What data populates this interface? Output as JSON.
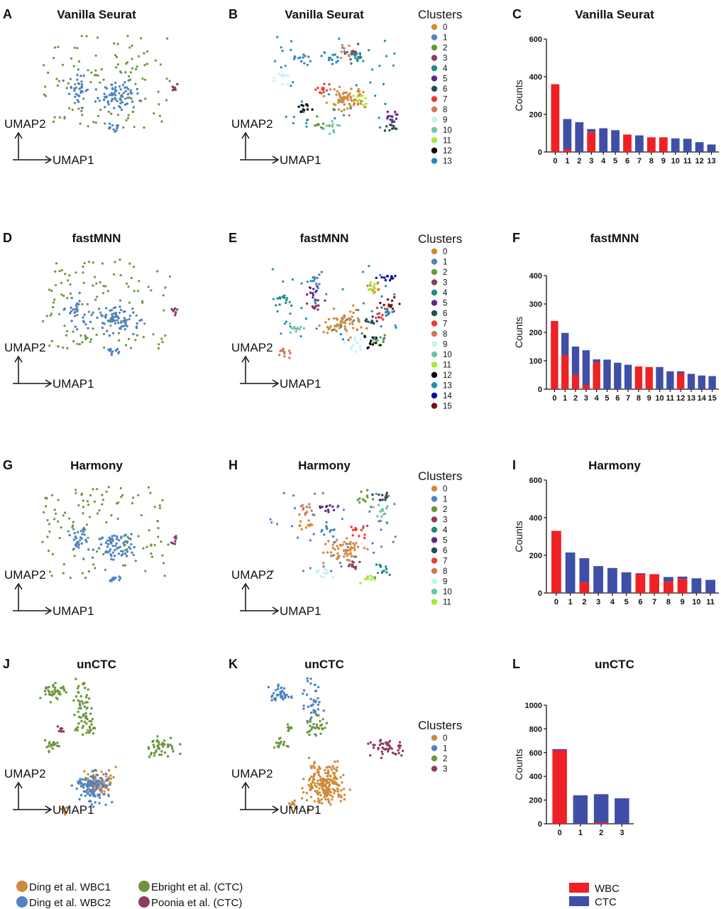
{
  "colors": {
    "wbc": "#ee2124",
    "ctc": "#3f4fa8",
    "ding_wbc1": "#d08a3b",
    "ding_wbc2": "#4f83c4",
    "ebright": "#6b963c",
    "poonia": "#8c3d62",
    "clusters": [
      "#d08a3b",
      "#4f83c4",
      "#6b963c",
      "#8c3d62",
      "#1f8a8a",
      "#5e2a8a",
      "#2c4a52",
      "#ee3a2e",
      "#c97a5e",
      "#c5f2f5",
      "#6cc6a8",
      "#a8e83a",
      "#0a0a0a",
      "#1b8fb8",
      "#0a0a9e",
      "#7d0f0f"
    ]
  },
  "umap_axes": {
    "x": "UMAP1",
    "y": "UMAP2"
  },
  "clusters_legend_title": "Clusters",
  "rows": [
    {
      "title": "Vanilla Seurat",
      "letters": [
        "A",
        "B",
        "C"
      ],
      "n_clusters": 14
    },
    {
      "title": "fastMNN",
      "letters": [
        "D",
        "E",
        "F"
      ],
      "n_clusters": 16
    },
    {
      "title": "Harmony",
      "letters": [
        "G",
        "H",
        "I"
      ],
      "n_clusters": 12
    },
    {
      "title": "unCTC",
      "letters": [
        "J",
        "K",
        "L"
      ],
      "n_clusters": 4
    }
  ],
  "dataset_legend": [
    {
      "label": "Ding et al. WBC1",
      "color_key": "ding_wbc1"
    },
    {
      "label": "Ding et al. WBC2",
      "color_key": "ding_wbc2"
    },
    {
      "label": "Ebright et al. (CTC)",
      "color_key": "ebright"
    },
    {
      "label": "Poonia et al. (CTC)",
      "color_key": "poonia"
    }
  ],
  "type_legend": [
    {
      "label": "WBC",
      "color_key": "wbc"
    },
    {
      "label": "CTC",
      "color_key": "ctc"
    }
  ],
  "chart_data": [
    {
      "type": "bar",
      "stacked": true,
      "title": "Vanilla Seurat",
      "ylabel": "Counts",
      "xlabel": "",
      "ylim": [
        0,
        600
      ],
      "yticks": [
        0,
        200,
        400,
        600
      ],
      "categories": [
        "0",
        "1",
        "2",
        "3",
        "4",
        "5",
        "6",
        "7",
        "8",
        "9",
        "10",
        "11",
        "12",
        "13"
      ],
      "series": [
        {
          "name": "WBC",
          "values": [
            360,
            15,
            0,
            105,
            0,
            0,
            93,
            0,
            78,
            78,
            0,
            0,
            0,
            0
          ]
        },
        {
          "name": "CTC",
          "values": [
            0,
            160,
            158,
            17,
            126,
            116,
            0,
            88,
            0,
            0,
            72,
            70,
            52,
            40
          ]
        }
      ]
    },
    {
      "type": "bar",
      "stacked": true,
      "title": "fastMNN",
      "ylabel": "Counts",
      "xlabel": "",
      "ylim": [
        0,
        400
      ],
      "yticks": [
        0,
        100,
        200,
        300,
        400
      ],
      "categories": [
        "0",
        "1",
        "2",
        "3",
        "4",
        "5",
        "6",
        "7",
        "8",
        "9",
        "10",
        "11",
        "12",
        "13",
        "14",
        "15"
      ],
      "series": [
        {
          "name": "WBC",
          "values": [
            240,
            120,
            50,
            15,
            95,
            0,
            0,
            0,
            80,
            78,
            0,
            0,
            55,
            0,
            0,
            0
          ]
        },
        {
          "name": "CTC",
          "values": [
            0,
            78,
            100,
            122,
            10,
            104,
            93,
            86,
            0,
            0,
            78,
            63,
            8,
            54,
            48,
            46
          ]
        }
      ]
    },
    {
      "type": "bar",
      "stacked": true,
      "title": "Harmony",
      "ylabel": "Counts",
      "xlabel": "",
      "ylim": [
        0,
        600
      ],
      "yticks": [
        0,
        200,
        400,
        600
      ],
      "categories": [
        "0",
        "1",
        "2",
        "3",
        "4",
        "5",
        "6",
        "7",
        "8",
        "9",
        "10",
        "11"
      ],
      "series": [
        {
          "name": "WBC",
          "values": [
            330,
            0,
            55,
            0,
            0,
            0,
            100,
            100,
            60,
            75,
            0,
            0
          ]
        },
        {
          "name": "CTC",
          "values": [
            0,
            215,
            130,
            143,
            133,
            110,
            5,
            0,
            25,
            12,
            78,
            70
          ]
        }
      ]
    },
    {
      "type": "bar",
      "stacked": true,
      "title": "unCTC",
      "ylabel": "Counts",
      "xlabel": "",
      "ylim": [
        0,
        1000
      ],
      "yticks": [
        0,
        200,
        400,
        600,
        800,
        1000
      ],
      "categories": [
        "0",
        "1",
        "2",
        "3"
      ],
      "series": [
        {
          "name": "WBC",
          "values": [
            620,
            0,
            10,
            0
          ]
        },
        {
          "name": "CTC",
          "values": [
            10,
            240,
            240,
            215
          ]
        }
      ]
    }
  ]
}
